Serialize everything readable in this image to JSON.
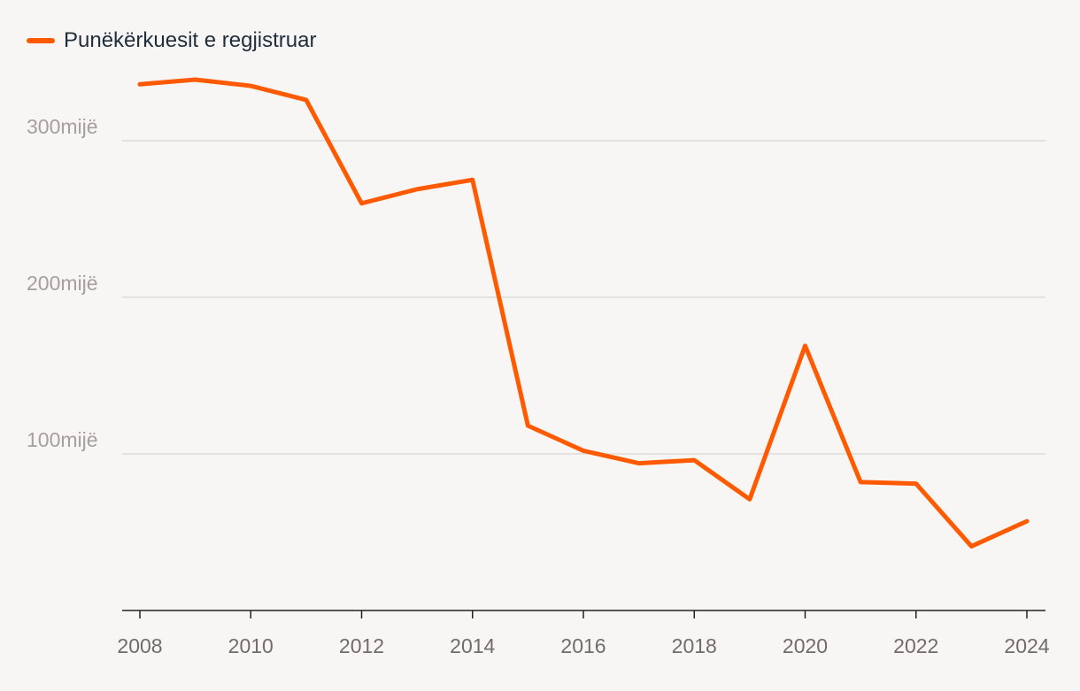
{
  "chart_data": {
    "type": "line",
    "x": [
      2008,
      2009,
      2010,
      2011,
      2012,
      2013,
      2014,
      2015,
      2016,
      2017,
      2018,
      2019,
      2020,
      2021,
      2022,
      2023,
      2024
    ],
    "series": [
      {
        "name": "Punëkërkuesit e regjistruar",
        "color": "#ff5a00",
        "values": [
          336000,
          339000,
          335000,
          326000,
          260000,
          269000,
          275000,
          118000,
          102000,
          94000,
          96000,
          71000,
          169000,
          82000,
          81000,
          41000,
          57000
        ]
      }
    ],
    "x_ticks": [
      2008,
      2010,
      2012,
      2014,
      2016,
      2018,
      2020,
      2022,
      2024
    ],
    "x_tick_labels": [
      "2008",
      "2010",
      "2012",
      "2014",
      "2016",
      "2018",
      "2020",
      "2022",
      "2024"
    ],
    "y_ticks": [
      100000,
      200000,
      300000
    ],
    "y_tick_labels": [
      "100mijë",
      "200mijë",
      "300mijë"
    ],
    "ylim": [
      0,
      375000
    ],
    "xlim": [
      2008,
      2024
    ],
    "grid": true,
    "legend_position": "top-left",
    "title": "",
    "xlabel": "",
    "ylabel": ""
  }
}
